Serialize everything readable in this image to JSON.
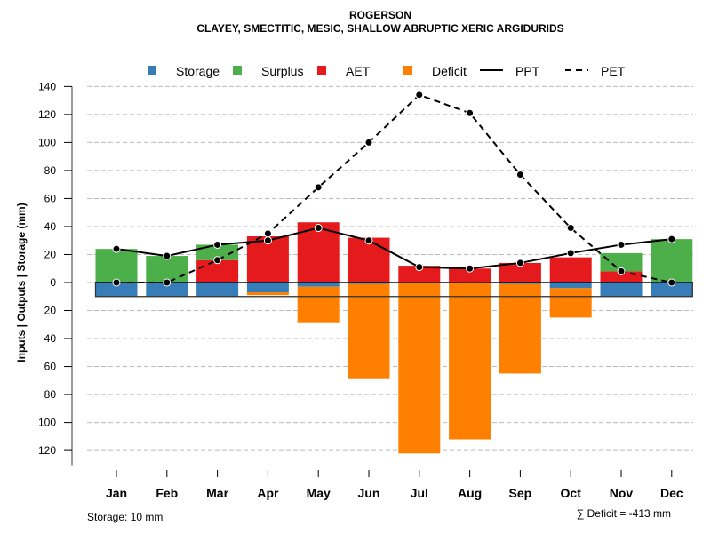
{
  "chart_data": {
    "type": "bar",
    "title": "ROGERSON",
    "subtitle": "CLAYEY, SMECTITIC, MESIC, SHALLOW ABRUPTIC XERIC ARGIDURIDS",
    "xlabel": "",
    "ylabel": "Inputs | Outputs | Storage    (mm)",
    "ylim": [
      -130,
      140
    ],
    "yticks": [
      140,
      120,
      100,
      80,
      60,
      40,
      20,
      0,
      -20,
      -40,
      -60,
      -80,
      -100,
      -120
    ],
    "ytick_labels": [
      "140",
      "120",
      "100",
      "80",
      "60",
      "40",
      "20",
      "0",
      "20",
      "40",
      "60",
      "80",
      "100",
      "120"
    ],
    "grid": true,
    "legend_position": "top",
    "categories": [
      "Jan",
      "Feb",
      "Mar",
      "Apr",
      "May",
      "Jun",
      "Jul",
      "Aug",
      "Sep",
      "Oct",
      "Nov",
      "Dec"
    ],
    "series": [
      {
        "name": "Storage",
        "kind": "bar-below",
        "color": "#377EB8",
        "values": [
          10,
          10,
          10,
          7,
          3,
          1,
          0,
          0,
          1,
          4,
          10,
          10
        ]
      },
      {
        "name": "Surplus",
        "kind": "bar-above",
        "color": "#4DAF4A",
        "values": [
          24,
          19,
          11,
          0,
          0,
          0,
          0,
          0,
          0,
          0,
          13,
          31
        ]
      },
      {
        "name": "AET",
        "kind": "bar-above",
        "color": "#E41A1C",
        "values": [
          0,
          0,
          16,
          33,
          43,
          32,
          12,
          10,
          14,
          18,
          8,
          0
        ]
      },
      {
        "name": "Deficit",
        "kind": "bar-below",
        "color": "#FF7F00",
        "values": [
          0,
          0,
          0,
          2,
          26,
          68,
          122,
          112,
          64,
          21,
          0,
          0
        ]
      },
      {
        "name": "PPT",
        "kind": "line-solid",
        "color": "#000000",
        "values": [
          24,
          19,
          27,
          30,
          39,
          30,
          11,
          10,
          14,
          21,
          27,
          31
        ]
      },
      {
        "name": "PET",
        "kind": "line-dashed",
        "color": "#000000",
        "values": [
          0,
          0,
          16,
          35,
          68,
          100,
          134,
          121,
          77,
          39,
          8,
          0
        ]
      }
    ],
    "storage_capacity": 10,
    "annotations": {
      "storage": "Storage: 10 mm",
      "deficit_sum": "∑ Deficit = -413 mm"
    }
  }
}
